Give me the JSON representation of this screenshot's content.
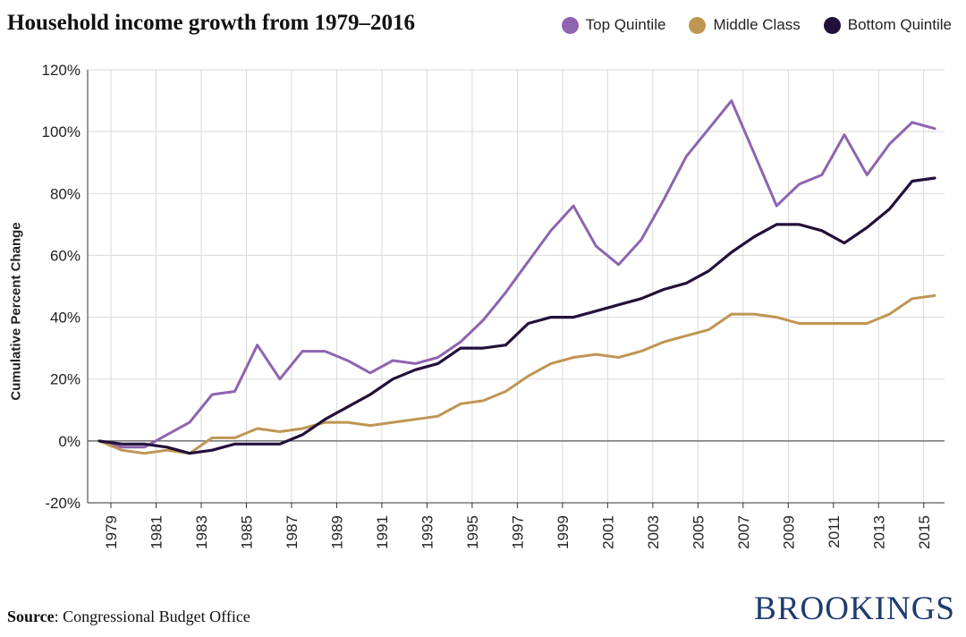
{
  "title": "Household income growth from 1979–2016",
  "source_label": "Source",
  "source_text": ": Congressional Budget Office",
  "brand": "BROOKINGS",
  "colors": {
    "top": "#8e64b0",
    "middle": "#bf9554",
    "bottom": "#22103a",
    "grid": "#d9d9d9",
    "axis": "#333333"
  },
  "chart_data": {
    "type": "line",
    "title": "Household income growth from 1979–2016",
    "xlabel": "",
    "ylabel": "Cumulative Percent Change",
    "ylim": [
      -20,
      120
    ],
    "yticks": [
      -20,
      0,
      20,
      40,
      60,
      80,
      100,
      120
    ],
    "ytick_labels": [
      "-20%",
      "0%",
      "20%",
      "40%",
      "60%",
      "80%",
      "100%",
      "120%"
    ],
    "xlim": [
      1979,
      2016
    ],
    "xticks": [
      1979,
      1981,
      1983,
      1985,
      1987,
      1989,
      1991,
      1993,
      1995,
      1997,
      1999,
      2001,
      2003,
      2005,
      2007,
      2009,
      2011,
      2013,
      2015
    ],
    "grid": true,
    "legend_position": "top-right",
    "x": [
      1979,
      1980,
      1981,
      1982,
      1983,
      1984,
      1985,
      1986,
      1987,
      1988,
      1989,
      1990,
      1991,
      1992,
      1993,
      1994,
      1995,
      1996,
      1997,
      1998,
      1999,
      2000,
      2001,
      2002,
      2003,
      2004,
      2005,
      2006,
      2007,
      2008,
      2009,
      2010,
      2011,
      2012,
      2013,
      2014,
      2015,
      2016
    ],
    "series": [
      {
        "name": "Top Quintile",
        "color": "#8e64b0",
        "values": [
          0,
          -2,
          -2,
          2,
          6,
          15,
          16,
          31,
          20,
          29,
          29,
          26,
          22,
          26,
          25,
          27,
          32,
          39,
          48,
          58,
          68,
          76,
          63,
          57,
          65,
          78,
          92,
          101,
          110,
          93,
          76,
          83,
          86,
          99,
          86,
          96,
          103,
          101
        ]
      },
      {
        "name": "Middle Class",
        "color": "#bf9554",
        "values": [
          0,
          -3,
          -4,
          -3,
          -4,
          1,
          1,
          4,
          3,
          4,
          6,
          6,
          5,
          6,
          7,
          8,
          12,
          13,
          16,
          21,
          25,
          27,
          28,
          27,
          29,
          32,
          34,
          36,
          41,
          41,
          40,
          38,
          38,
          38,
          38,
          41,
          46,
          47
        ]
      },
      {
        "name": "Bottom Quintile",
        "color": "#22103a",
        "values": [
          0,
          -1,
          -1,
          -2,
          -4,
          -3,
          -1,
          -1,
          -1,
          2,
          7,
          11,
          15,
          20,
          23,
          25,
          30,
          30,
          31,
          38,
          40,
          40,
          42,
          44,
          46,
          49,
          51,
          55,
          61,
          66,
          70,
          70,
          68,
          64,
          69,
          75,
          84,
          85
        ]
      }
    ]
  }
}
